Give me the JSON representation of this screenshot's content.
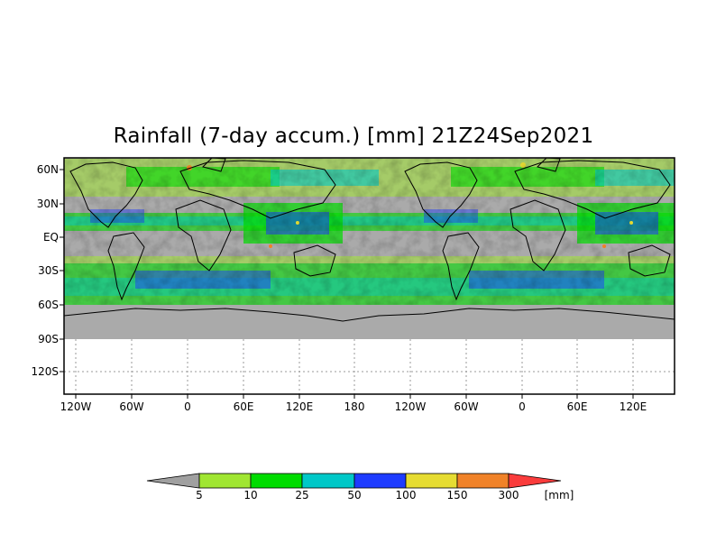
{
  "title": "Rainfall (7-day accum.) [mm] 21Z24Sep2021",
  "y_axis_labels": [
    "60N",
    "30N",
    "EQ",
    "30S",
    "60S",
    "90S",
    "120S"
  ],
  "x_axis_labels": [
    "120W",
    "60W",
    "0",
    "60E",
    "120E",
    "180",
    "120W",
    "60W",
    "0",
    "60E",
    "120E"
  ],
  "colorbar": {
    "thresholds": [
      "5",
      "10",
      "25",
      "50",
      "100",
      "150",
      "300"
    ],
    "unit": "[mm]",
    "colors": [
      "#a0a0a0",
      "#a0e632",
      "#00dc00",
      "#00c8c8",
      "#1e3cff",
      "#e6dc32",
      "#f08228",
      "#fa3c3c"
    ]
  },
  "map_colors": {
    "land_ocean_no_rain": "#aaaaaa",
    "coastline": "#000000",
    "grid": "#999999"
  }
}
